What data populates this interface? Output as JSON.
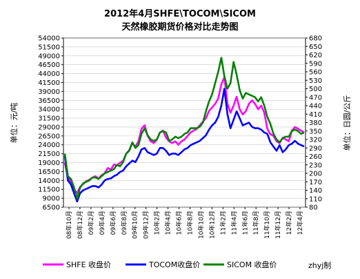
{
  "chart_data": {
    "type": "line",
    "title": "2012年4月SHFE\\TOCOM\\SICOM",
    "subtitle": "天然橡胶期货价格对比走势图",
    "ylabel_left": "单位：元/吨",
    "ylabel_right": "单位：日圆/公斤",
    "watermark": "zhyj制",
    "ylim_left": [
      6500,
      54000
    ],
    "ylim_right": [
      80,
      680
    ],
    "yticks_left": [
      "54000",
      "51500",
      "49000",
      "46500",
      "44000",
      "41500",
      "39000",
      "36500",
      "34000",
      "31500",
      "29000",
      "26500",
      "24000",
      "21500",
      "19000",
      "16500",
      "14000",
      "11500",
      "9000",
      "6500"
    ],
    "yticks_right": [
      "680",
      "650",
      "620",
      "590",
      "560",
      "530",
      "500",
      "470",
      "440",
      "410",
      "380",
      "350",
      "320",
      "290",
      "260",
      "230",
      "200",
      "170",
      "140",
      "110",
      "80"
    ],
    "xticks": [
      "08年10月",
      "08年12月",
      "09年2月",
      "09年4月",
      "09年6月",
      "09年8月",
      "09年10月",
      "09年12月",
      "10年2月",
      "10年4月",
      "10年6月",
      "10年8月",
      "10年10月",
      "10年12月",
      "11年2月",
      "11年4月",
      "11年6月",
      "11年8月",
      "11年10月",
      "11年12月",
      "12年2月",
      "12年4月"
    ],
    "series": [
      {
        "name": "SHFE 收盘价",
        "axis": "left",
        "color": "#ff00ff",
        "values": [
          19000,
          15000,
          13500,
          11500,
          10500,
          12200,
          13000,
          13800,
          14200,
          14800,
          15200,
          14500,
          15500,
          16000,
          17500,
          17000,
          18500,
          18200,
          19000,
          19500,
          21500,
          22500,
          24500,
          23500,
          25000,
          28500,
          29500,
          26500,
          25000,
          24500,
          25500,
          27500,
          28000,
          26000,
          25000,
          24500,
          25000,
          24000,
          25000,
          25500,
          26500,
          27500,
          28000,
          28500,
          29500,
          30500,
          31500,
          33500,
          34500,
          35500,
          37000,
          41000,
          43000,
          35500,
          33000,
          35000,
          37500,
          34000,
          32500,
          33500,
          35500,
          36500,
          35500,
          34000,
          35000,
          33000,
          28500,
          27000,
          26500,
          25000,
          24500,
          26000,
          25500,
          25000,
          28000,
          29000,
          28500,
          28000,
          27500
        ]
      },
      {
        "name": "TOCOM收盘价",
        "axis": "right",
        "color": "#0000ff",
        "values": [
          260,
          175,
          160,
          130,
          100,
          130,
          140,
          145,
          150,
          155,
          155,
          150,
          160,
          175,
          180,
          182,
          190,
          195,
          205,
          210,
          225,
          235,
          245,
          240,
          260,
          285,
          290,
          275,
          270,
          265,
          270,
          290,
          290,
          280,
          265,
          270,
          270,
          265,
          275,
          285,
          290,
          300,
          305,
          310,
          315,
          325,
          335,
          355,
          370,
          380,
          400,
          440,
          500,
          410,
          360,
          390,
          420,
          395,
          370,
          375,
          380,
          365,
          360,
          360,
          355,
          345,
          340,
          310,
          295,
          280,
          300,
          275,
          285,
          300,
          305,
          315,
          305,
          300,
          295
        ]
      },
      {
        "name": "SICOM 收盘价",
        "axis": "right",
        "color": "#008000",
        "values": [
          270,
          190,
          180,
          150,
          110,
          150,
          165,
          170,
          175,
          185,
          185,
          180,
          190,
          200,
          205,
          210,
          215,
          230,
          225,
          240,
          270,
          280,
          310,
          290,
          300,
          340,
          360,
          335,
          320,
          315,
          320,
          345,
          350,
          345,
          315,
          320,
          330,
          325,
          330,
          340,
          345,
          360,
          360,
          360,
          365,
          380,
          420,
          455,
          480,
          520,
          560,
          610,
          545,
          500,
          520,
          595,
          550,
          495,
          465,
          485,
          480,
          475,
          470,
          455,
          470,
          440,
          400,
          375,
          340,
          320,
          310,
          325,
          330,
          330,
          350,
          355,
          350,
          340,
          345
        ]
      }
    ]
  }
}
